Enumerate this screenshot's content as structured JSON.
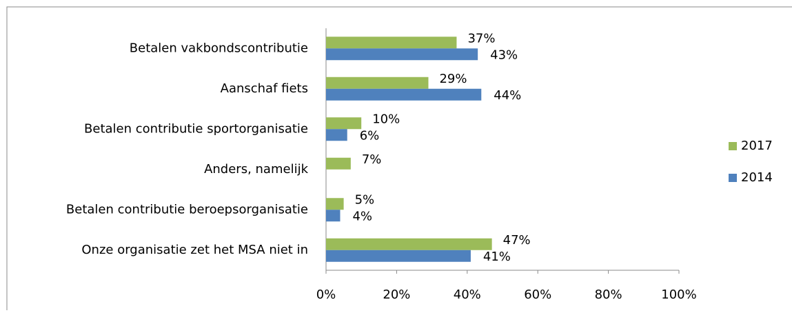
{
  "chart_data": {
    "type": "bar",
    "orientation": "horizontal",
    "categories": [
      "Betalen vakbondscontributie",
      "Aanschaf fiets",
      "Betalen contributie sportorganisatie",
      "Anders, namelijk",
      "Betalen contributie beroepsorganisatie",
      "Onze organisatie zet het MSA niet in"
    ],
    "series": [
      {
        "name": "2017",
        "color": "#9bbb59",
        "values": [
          37,
          29,
          10,
          7,
          5,
          47
        ],
        "value_labels": [
          "37%",
          "29%",
          "10%",
          "7%",
          "5%",
          "47%"
        ]
      },
      {
        "name": "2014",
        "color": "#4f81bd",
        "values": [
          43,
          44,
          6,
          null,
          4,
          41
        ],
        "value_labels": [
          "43%",
          "44%",
          "6%",
          null,
          "4%",
          "41%"
        ]
      }
    ],
    "xlim": [
      0,
      100
    ],
    "xticks": [
      {
        "value": 0,
        "label": "0%"
      },
      {
        "value": 20,
        "label": "20%"
      },
      {
        "value": 40,
        "label": "40%"
      },
      {
        "value": 60,
        "label": "60%"
      },
      {
        "value": 80,
        "label": "80%"
      },
      {
        "value": 100,
        "label": "100%"
      }
    ],
    "legend": "right"
  }
}
